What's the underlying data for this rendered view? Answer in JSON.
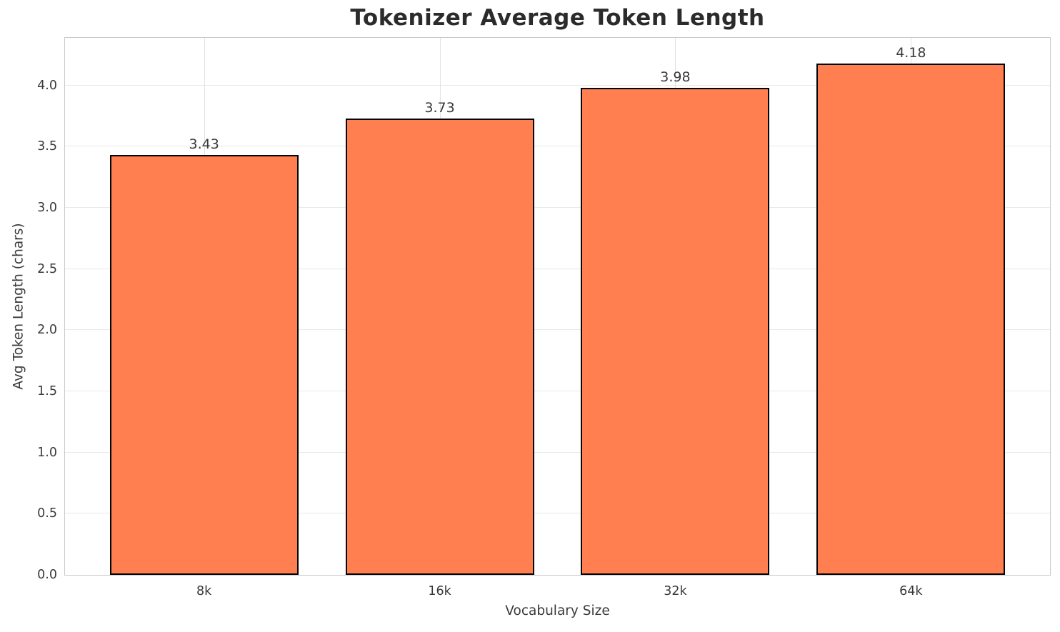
{
  "chart_data": {
    "type": "bar",
    "title": "Tokenizer Average Token Length",
    "xlabel": "Vocabulary Size",
    "ylabel": "Avg Token Length (chars)",
    "categories": [
      "8k",
      "16k",
      "32k",
      "64k"
    ],
    "values": [
      3.43,
      3.73,
      3.98,
      4.18
    ],
    "value_labels": [
      "3.43",
      "3.73",
      "3.98",
      "4.18"
    ],
    "yticks": [
      0.0,
      0.5,
      1.0,
      1.5,
      2.0,
      2.5,
      3.0,
      3.5,
      4.0
    ],
    "ytick_labels": [
      "0.0",
      "0.5",
      "1.0",
      "1.5",
      "2.0",
      "2.5",
      "3.0",
      "3.5",
      "4.0"
    ],
    "ylim": [
      0,
      4.39
    ],
    "xlim": [
      -0.59,
      3.59
    ],
    "bar_width_units": 0.8,
    "grid": true,
    "legend": "none",
    "bar_color": "#FF7F50",
    "bar_edge_color": "#000000",
    "grid_color": "#e9e9e9",
    "spine_color": "#c9c9c9"
  }
}
